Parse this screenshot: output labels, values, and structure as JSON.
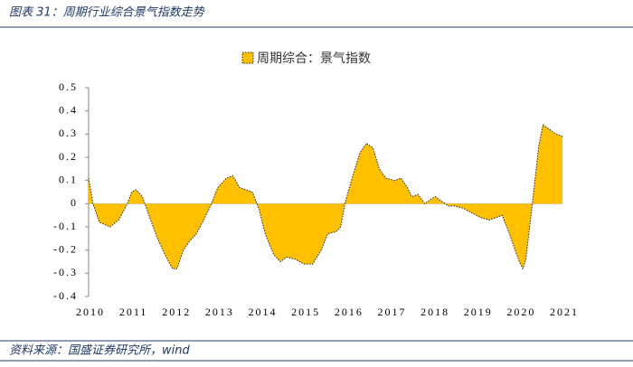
{
  "header": {
    "title": "图表 31：周期行业综合景气指数走势"
  },
  "chart_data": {
    "type": "area",
    "series": [
      {
        "name": "周期综合：景气指数",
        "color": "#ffc000",
        "x": [
          2010.0,
          2010.1,
          2010.25,
          2010.5,
          2010.7,
          2010.9,
          2011.0,
          2011.1,
          2011.25,
          2011.4,
          2011.6,
          2011.8,
          2011.95,
          2012.05,
          2012.2,
          2012.35,
          2012.5,
          2012.7,
          2012.85,
          2013.0,
          2013.2,
          2013.35,
          2013.5,
          2013.65,
          2013.8,
          2013.95,
          2014.1,
          2014.3,
          2014.45,
          2014.6,
          2014.8,
          2015.0,
          2015.2,
          2015.4,
          2015.55,
          2015.75,
          2015.85,
          2015.95,
          2016.1,
          2016.3,
          2016.45,
          2016.6,
          2016.75,
          2016.9,
          2017.1,
          2017.25,
          2017.4,
          2017.5,
          2017.65,
          2017.8,
          2017.95,
          2018.05,
          2018.2,
          2018.35,
          2018.5,
          2018.7,
          2018.9,
          2019.1,
          2019.3,
          2019.45,
          2019.6,
          2019.75,
          2019.9,
          2020.0,
          2020.08,
          2020.15,
          2020.3,
          2020.45,
          2020.55,
          2020.7,
          2020.85,
          2021.0
        ],
        "values": [
          0.11,
          0.0,
          -0.08,
          -0.1,
          -0.07,
          0.0,
          0.05,
          0.06,
          0.03,
          -0.05,
          -0.15,
          -0.23,
          -0.28,
          -0.28,
          -0.2,
          -0.16,
          -0.13,
          -0.06,
          0.0,
          0.07,
          0.11,
          0.12,
          0.07,
          0.06,
          0.05,
          -0.02,
          -0.13,
          -0.22,
          -0.25,
          -0.23,
          -0.24,
          -0.26,
          -0.26,
          -0.2,
          -0.13,
          -0.12,
          -0.1,
          0.0,
          0.1,
          0.22,
          0.26,
          0.24,
          0.15,
          0.11,
          0.1,
          0.11,
          0.07,
          0.03,
          0.04,
          0.0,
          0.02,
          0.03,
          0.01,
          -0.01,
          -0.01,
          -0.02,
          -0.04,
          -0.06,
          -0.07,
          -0.06,
          -0.05,
          -0.12,
          -0.2,
          -0.25,
          -0.28,
          -0.24,
          0.0,
          0.25,
          0.34,
          0.32,
          0.3,
          0.29
        ]
      }
    ],
    "xlim": [
      2010,
      2021
    ],
    "xticks": [
      2010,
      2011,
      2012,
      2013,
      2014,
      2015,
      2016,
      2017,
      2018,
      2019,
      2020,
      2021
    ],
    "ylim": [
      -0.4,
      0.5
    ],
    "yticks": [
      0.5,
      0.4,
      0.3,
      0.2,
      0.1,
      0,
      -0.1,
      -0.2,
      -0.3,
      -0.4
    ],
    "legend": "top"
  },
  "footer": {
    "source": "资料来源：国盛证券研究所，wind"
  }
}
